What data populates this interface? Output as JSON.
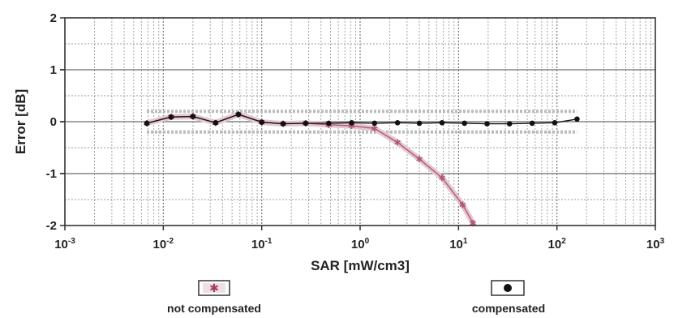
{
  "chart_data": {
    "type": "line",
    "title": "",
    "xlabel": "SAR [mW/cm3]",
    "ylabel": "Error [dB]",
    "x_scale": "log",
    "xlim": [
      0.001,
      1000
    ],
    "ylim": [
      -2,
      2
    ],
    "x_ticks": [
      {
        "value": 0.001,
        "base": "10",
        "exp": "-3"
      },
      {
        "value": 0.01,
        "base": "10",
        "exp": "-2"
      },
      {
        "value": 0.1,
        "base": "10",
        "exp": "-1"
      },
      {
        "value": 1,
        "base": "10",
        "exp": "0"
      },
      {
        "value": 10,
        "base": "10",
        "exp": "1"
      },
      {
        "value": 100,
        "base": "10",
        "exp": "2"
      },
      {
        "value": 1000,
        "base": "10",
        "exp": "3"
      }
    ],
    "y_ticks": [
      {
        "value": 2,
        "label": "2"
      },
      {
        "value": 1,
        "label": "1"
      },
      {
        "value": 0,
        "label": "0"
      },
      {
        "value": -1,
        "label": "-1"
      },
      {
        "value": -2,
        "label": "-2"
      }
    ],
    "grid": true,
    "legend_position": "bottom",
    "series": [
      {
        "name": "not compensated",
        "color": "#b0587a",
        "marker": "star",
        "x": [
          0.0068,
          0.012,
          0.02,
          0.034,
          0.058,
          0.1,
          0.165,
          0.28,
          0.48,
          0.82,
          1.4,
          2.4,
          4.0,
          6.8,
          11.0,
          14.0
        ],
        "y": [
          -0.03,
          0.09,
          0.1,
          -0.02,
          0.14,
          -0.01,
          -0.04,
          -0.03,
          -0.06,
          -0.08,
          -0.13,
          -0.4,
          -0.72,
          -1.08,
          -1.6,
          -1.95
        ]
      },
      {
        "name": "compensated",
        "color": "#111111",
        "marker": "circle",
        "x": [
          0.0068,
          0.012,
          0.02,
          0.034,
          0.058,
          0.1,
          0.165,
          0.28,
          0.48,
          0.82,
          1.4,
          2.4,
          4.0,
          6.8,
          11.5,
          19.5,
          33.0,
          56.0,
          95.0,
          160.0
        ],
        "y": [
          -0.03,
          0.09,
          0.1,
          -0.02,
          0.14,
          -0.01,
          -0.04,
          -0.03,
          -0.03,
          -0.02,
          -0.03,
          -0.02,
          -0.03,
          -0.02,
          -0.03,
          -0.04,
          -0.04,
          -0.03,
          -0.02,
          0.05
        ]
      }
    ],
    "envelope": {
      "name": "uncertainty band",
      "color": "#bcbcbc",
      "x_range": [
        0.0068,
        160.0
      ],
      "upper": 0.2,
      "lower": -0.2
    }
  }
}
